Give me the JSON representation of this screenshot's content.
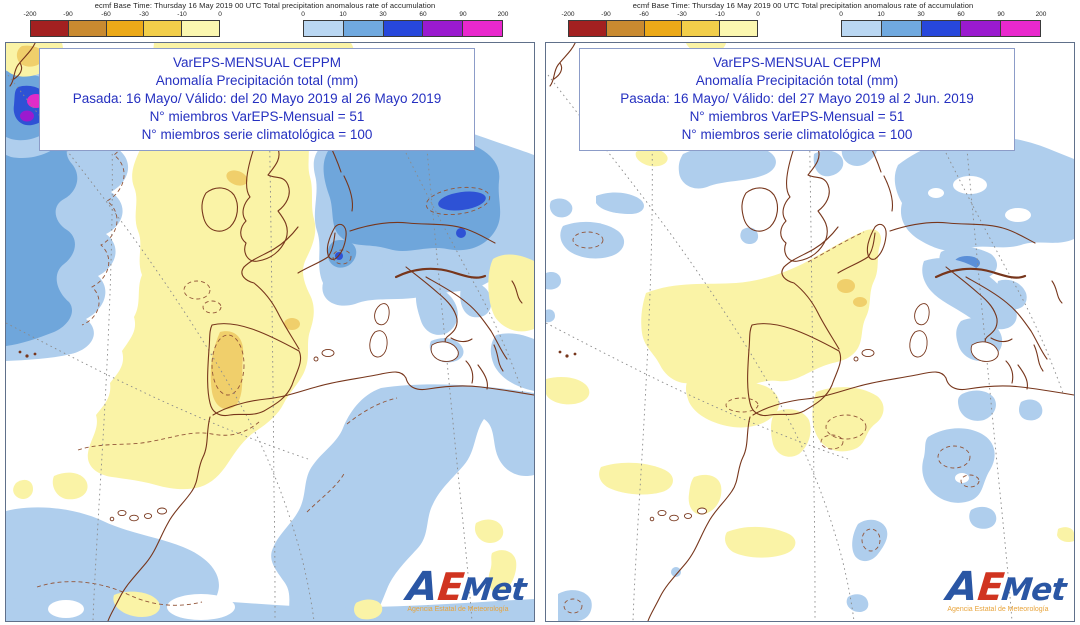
{
  "header": {
    "text": "ecmf  Base Time: Thursday 16 May 2019 00 UTC Total precipitation anomalous rate of accumulation"
  },
  "legend": {
    "negative": {
      "tick_labels": [
        "-200",
        "-90",
        "-60",
        "-30",
        "-10",
        "0"
      ],
      "colors": [
        "#a32020",
        "#c98a30",
        "#eca918",
        "#f2ce4a",
        "#fbf7b0"
      ]
    },
    "positive": {
      "tick_labels": [
        "0",
        "10",
        "30",
        "60",
        "90",
        "200"
      ],
      "colors": [
        "#bad7f2",
        "#70a9df",
        "#2747db",
        "#9a1acf",
        "#e928cd"
      ]
    }
  },
  "panels": [
    {
      "name": "week1",
      "title_lines": [
        "VarEPS-MENSUAL CEPPM",
        "Anomalía Precipitación total (mm)",
        "Pasada: 16 Mayo/ Válido: del 20 Mayo 2019 al 26 Mayo 2019",
        "N° miembros VarEPS-Mensual = 51",
        "N° miembros serie climatológica = 100"
      ]
    },
    {
      "name": "week2",
      "title_lines": [
        "VarEPS-MENSUAL CEPPM",
        "Anomalía Precipitación total (mm)",
        "Pasada: 16 Mayo/ Válido: del 27 Mayo 2019 al 2 Jun. 2019",
        "N° miembros VarEPS-Mensual = 51",
        "N° miembros serie climatológica = 100"
      ]
    }
  ],
  "logo": {
    "letter_a": "A",
    "letter_e": "E",
    "letters_met": "Met",
    "tagline": "Agencia Estatal de Meteorología"
  },
  "map_colors": {
    "pale_yellow": "#faf3a6",
    "amber": "#f0cf6b",
    "light_blue": "#afceed",
    "medium_blue": "#6fa6db",
    "strong_blue": "#2e52d5",
    "alps_blue": "#5b8fd8",
    "purple": "#9a1acf",
    "magenta": "#e22bc8",
    "coastline": "#77361c",
    "contour": "#93563a",
    "graticule": "#8b8b8b"
  }
}
